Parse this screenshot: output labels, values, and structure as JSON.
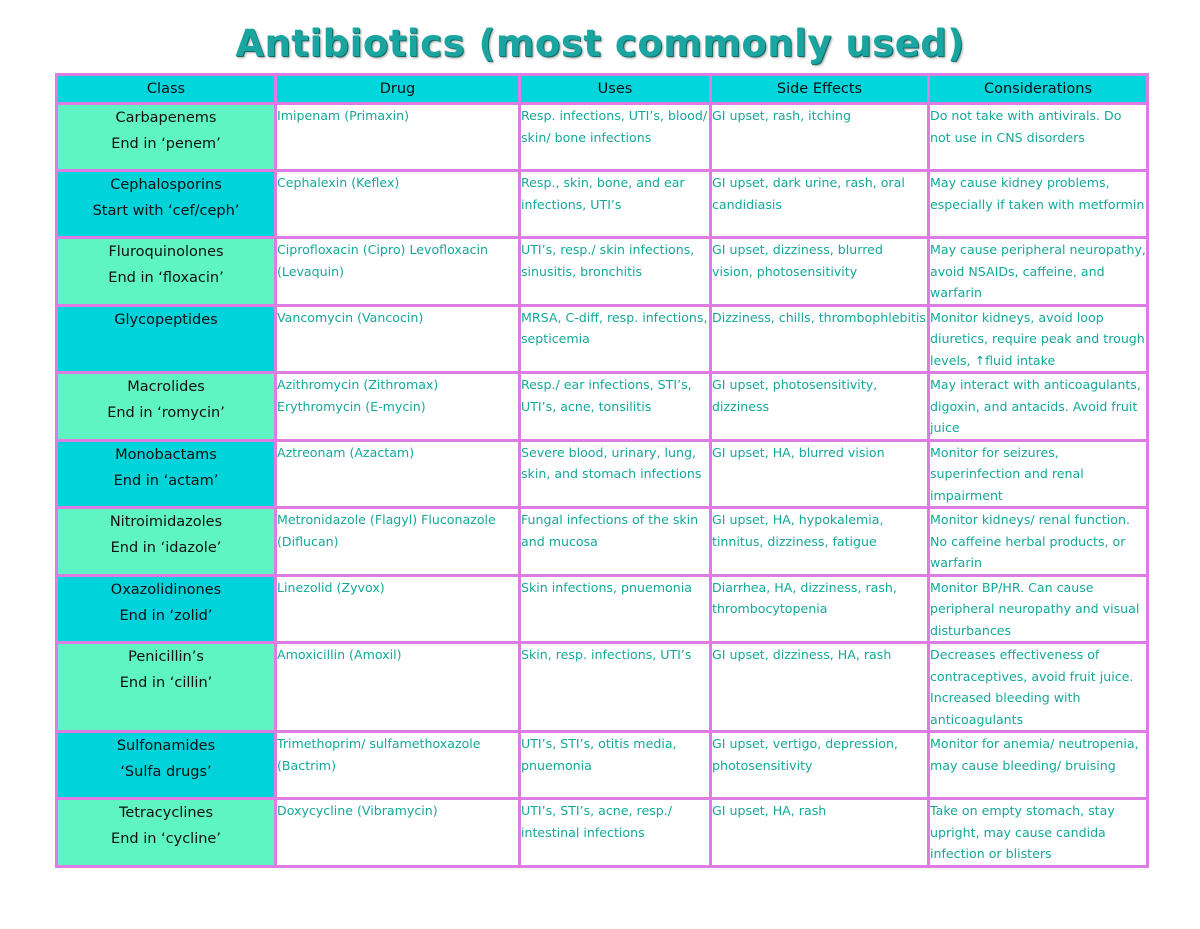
{
  "title": "Antibiotics (most commonly used)",
  "headers": [
    "Class",
    "Drug",
    "Uses",
    "Side Effects",
    "Considerations"
  ],
  "colors": {
    "title": "#1aa5a0",
    "header_bg": "#00d6dc",
    "class_bg_light": "#5ef5c3",
    "class_bg_dark": "#00d3da",
    "border": "#dd7ce2",
    "cell_text": "#14a89a"
  },
  "rows": [
    {
      "class_name": "Carbapenems",
      "class_note": "End in ‘penem’",
      "drug": "Imipenam (Primaxin)",
      "uses": "Resp. infections, UTI’s, blood/ skin/ bone infections",
      "side_effects": "GI upset, rash, itching",
      "considerations": "Do not take with antivirals. Do not use in CNS disorders"
    },
    {
      "class_name": "Cephalosporins",
      "class_note": "Start with ‘cef/ceph’",
      "drug": "Cephalexin (Keflex)",
      "uses": "Resp., skin, bone, and ear infections, UTI’s",
      "side_effects": "GI upset, dark urine, rash, oral candidiasis",
      "considerations": "May cause kidney problems, especially if taken with metformin"
    },
    {
      "class_name": "Fluroquinolones",
      "class_note": "End in ‘floxacin’",
      "drug": "Ciprofloxacin (Cipro) Levofloxacin (Levaquin)",
      "uses": "UTI’s, resp./ skin infections, sinusitis, bronchitis",
      "side_effects": "GI upset, dizziness, blurred vision, photosensitivity",
      "considerations": "May cause peripheral neuropathy, avoid NSAIDs, caffeine, and warfarin"
    },
    {
      "class_name": "Glycopeptides",
      "class_note": "",
      "drug": "Vancomycin (Vancocin)",
      "uses": "MRSA, C-diff, resp. infections, septicemia",
      "side_effects": "Dizziness, chills, thrombophlebitis",
      "considerations": "Monitor kidneys, avoid loop diuretics, require peak and trough levels, ↑fluid intake"
    },
    {
      "class_name": "Macrolides",
      "class_note": "End in ‘romycin’",
      "drug": "Azithromycin (Zithromax) Erythromycin (E-mycin)",
      "uses": "Resp./ ear infections, STI’s, UTI’s, acne, tonsilitis",
      "side_effects": "GI upset, photosensitivity, dizziness",
      "considerations": "May interact with anticoagulants, digoxin, and antacids. Avoid fruit juice"
    },
    {
      "class_name": "Monobactams",
      "class_note": "End in ‘actam’",
      "drug": "Aztreonam (Azactam)",
      "uses": "Severe blood, urinary, lung, skin, and stomach infections",
      "side_effects": "GI upset, HA, blurred vision",
      "considerations": "Monitor for seizures, superinfection and renal impairment"
    },
    {
      "class_name": "Nitroimidazoles",
      "class_note": "End in ‘idazole’",
      "drug": "Metronidazole (Flagyl) Fluconazole (Diflucan)",
      "uses": "Fungal infections of the skin and mucosa",
      "side_effects": "GI upset, HA, hypokalemia, tinnitus, dizziness, fatigue",
      "considerations": "Monitor kidneys/ renal function. No caffeine herbal products, or warfarin"
    },
    {
      "class_name": "Oxazolidinones",
      "class_note": "End in ‘zolid’",
      "drug": "Linezolid (Zyvox)",
      "uses": "Skin infections, pnuemonia",
      "side_effects": "Diarrhea, HA, dizziness, rash, thrombocytopenia",
      "considerations": "Monitor BP/HR. Can cause peripheral neuropathy and visual disturbances"
    },
    {
      "class_name": "Penicillin’s",
      "class_note": "End in ‘cillin’",
      "drug": "Amoxicillin (Amoxil)",
      "uses": "Skin, resp. infections, UTI’s",
      "side_effects": "GI upset, dizziness, HA, rash",
      "considerations": "Decreases effectiveness of contraceptives, avoid fruit juice. Increased bleeding with anticoagulants"
    },
    {
      "class_name": "Sulfonamides",
      "class_note": "‘Sulfa drugs’",
      "drug": "Trimethoprim/ sulfamethoxazole (Bactrim)",
      "uses": "UTI’s, STI’s, otitis media, pnuemonia",
      "side_effects": "GI upset, vertigo, depression, photosensitivity",
      "considerations": "Monitor for anemia/ neutropenia, may cause bleeding/ bruising"
    },
    {
      "class_name": "Tetracyclines",
      "class_note": "End in ‘cycline’",
      "drug": "Doxycycline (Vibramycin)",
      "uses": "UTI’s, STI’s, acne, resp./ intestinal infections",
      "side_effects": "GI upset, HA, rash",
      "considerations": "Take on empty stomach, stay upright, may cause candida infection or blisters"
    }
  ]
}
